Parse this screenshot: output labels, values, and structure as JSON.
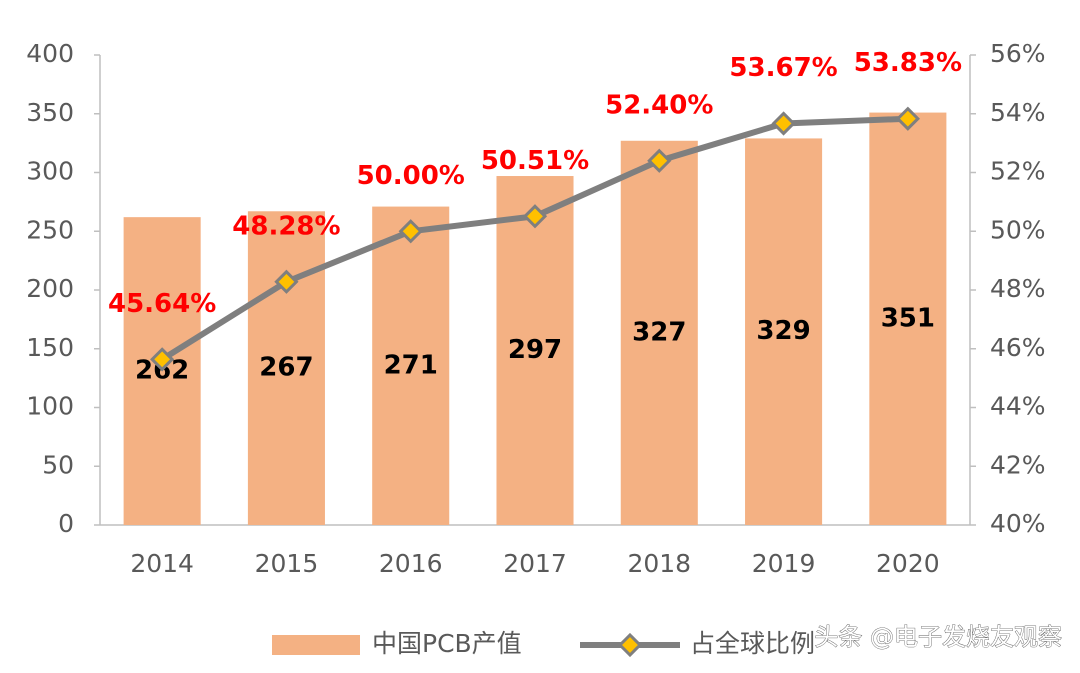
{
  "chart_data": {
    "type": "bar",
    "categories": [
      "2014",
      "2015",
      "2016",
      "2017",
      "2018",
      "2019",
      "2020"
    ],
    "series": [
      {
        "name": "中国PCB产值",
        "type": "bar",
        "color": "#f4b183",
        "values": [
          262,
          267,
          271,
          297,
          327,
          329,
          351
        ]
      },
      {
        "name": "占全球比例",
        "type": "line",
        "axis": "y2",
        "color": "#7f7f7f",
        "marker_color": "#ffc000",
        "values": [
          45.64,
          48.28,
          50.0,
          50.51,
          52.4,
          53.67,
          53.83
        ],
        "value_labels": [
          "45.64%",
          "48.28%",
          "50.00%",
          "50.51%",
          "52.40%",
          "53.67%",
          "53.83%"
        ]
      }
    ],
    "ylim": [
      0,
      400
    ],
    "yticks": [
      0,
      50,
      100,
      150,
      200,
      250,
      300,
      350,
      400
    ],
    "y2lim": [
      40,
      56
    ],
    "y2ticks": [
      {
        "value": 40,
        "label": "40%"
      },
      {
        "value": 42,
        "label": "42%"
      },
      {
        "value": 44,
        "label": "44%"
      },
      {
        "value": 46,
        "label": "46%"
      },
      {
        "value": 48,
        "label": "48%"
      },
      {
        "value": 50,
        "label": "50%"
      },
      {
        "value": 52,
        "label": "52%"
      },
      {
        "value": 54,
        "label": "54%"
      },
      {
        "value": 56,
        "label": "56%"
      }
    ],
    "watermark": "头条 @电子发烧友观察"
  }
}
